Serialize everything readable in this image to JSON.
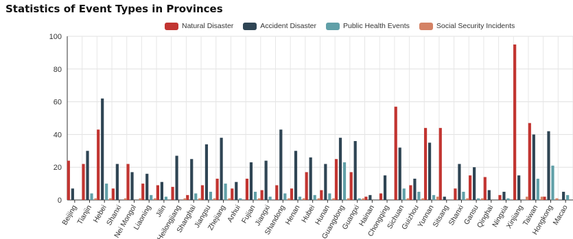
{
  "chart_data": {
    "type": "bar",
    "title": "Statistics of Event Types in Provinces",
    "xlabel": "",
    "ylabel": "",
    "ylim": [
      0,
      100
    ],
    "yticks": [
      0,
      20,
      40,
      60,
      80,
      100
    ],
    "grid": true,
    "legend_position": "top",
    "categories": [
      "Beijing",
      "Tianjin",
      "Hebei",
      "Shanxi",
      "Nei Mongol",
      "Liaoning",
      "Jilin",
      "Heilongjiang",
      "Shanghai",
      "Jiangsu",
      "Zhejiang",
      "Anhui",
      "Fujian",
      "Jiangxi",
      "Shandong",
      "Henan",
      "Hubei",
      "Hunan",
      "Guangdong",
      "Guangxi",
      "Hainan",
      "Chongqing",
      "Sichuan",
      "Guizhou",
      "Yunnan",
      "Sitsang",
      "Shanxi",
      "Gansu",
      "Qinghai",
      "Ningxia",
      "Xinjiang",
      "Taiwan",
      "Hongkong",
      "Macao"
    ],
    "series": [
      {
        "name": "Natural Disaster",
        "color": "#c23531",
        "values": [
          24,
          22,
          43,
          7,
          22,
          10,
          9,
          8,
          3,
          9,
          13,
          7,
          13,
          6,
          9,
          7,
          17,
          6,
          25,
          17,
          2,
          4,
          57,
          9,
          44,
          44,
          7,
          15,
          14,
          3,
          95,
          47,
          2,
          0
        ]
      },
      {
        "name": "Accident Disaster",
        "color": "#2f4554",
        "values": [
          7,
          30,
          62,
          22,
          17,
          16,
          11,
          27,
          25,
          34,
          38,
          11,
          23,
          24,
          43,
          30,
          26,
          22,
          38,
          36,
          3,
          15,
          32,
          13,
          35,
          2,
          22,
          20,
          6,
          5,
          15,
          40,
          42,
          5
        ]
      },
      {
        "name": "Public Health Events",
        "color": "#61a0a8",
        "values": [
          0,
          4,
          10,
          0,
          0,
          3,
          2,
          0,
          4,
          5,
          10,
          1,
          5,
          2,
          4,
          2,
          3,
          4,
          23,
          1,
          0,
          0,
          7,
          5,
          3,
          0,
          5,
          1,
          0,
          1,
          0,
          13,
          21,
          3
        ]
      },
      {
        "name": "Social Security Incidents",
        "color": "#d48265",
        "values": [
          0,
          1,
          1,
          1,
          1,
          1,
          0,
          1,
          1,
          1,
          1,
          0,
          1,
          0,
          1,
          1,
          1,
          1,
          1,
          1,
          0,
          0,
          1,
          1,
          2,
          0,
          1,
          1,
          0,
          0,
          2,
          2,
          1,
          0
        ]
      }
    ]
  }
}
